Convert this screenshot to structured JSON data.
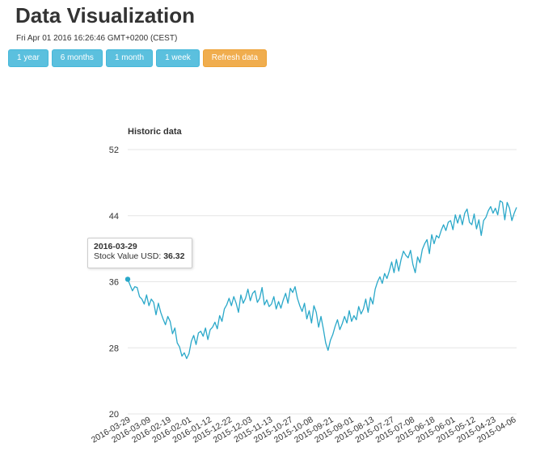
{
  "page": {
    "title": "Data Visualization",
    "timestamp": "Fri Apr 01 2016 16:26:46 GMT+0200 (CEST)"
  },
  "toolbar": {
    "buttons": [
      {
        "label": "1 year"
      },
      {
        "label": "6 months"
      },
      {
        "label": "1 month"
      },
      {
        "label": "1 week"
      },
      {
        "label": "Refresh data"
      }
    ]
  },
  "colors": {
    "line": "#2aa8c9",
    "grid": "#e6e6e6",
    "info_button": "#5bc0de",
    "warning_button": "#f0ad4e"
  },
  "tooltip": {
    "date": "2016-03-29",
    "label": "Stock Value USD:",
    "value": "36.32"
  },
  "chart_data": {
    "type": "line",
    "title": "Historic data",
    "xlabel": "",
    "ylabel": "",
    "ylim": [
      20,
      52
    ],
    "y_ticks": [
      "20",
      "28",
      "36",
      "44",
      "52"
    ],
    "x_ticks": [
      "2016-03-29",
      "2016-03-09",
      "2016-02-19",
      "2016-02-01",
      "2016-01-12",
      "2015-12-22",
      "2015-12-03",
      "2015-11-13",
      "2015-10-27",
      "2015-10-08",
      "2015-09-21",
      "2015-09-01",
      "2015-08-13",
      "2015-07-27",
      "2015-07-08",
      "2015-06-18",
      "2015-06-01",
      "2015-05-12",
      "2015-04-23",
      "2015-04-06"
    ],
    "grid": true,
    "legend": "none",
    "series": [
      {
        "values": [
          36.3,
          35.6,
          34.9,
          35.4,
          35.3,
          34.2,
          33.9,
          33.3,
          34.4,
          33.1,
          33.9,
          33.5,
          32.0,
          33.4,
          32.3,
          31.5,
          30.8,
          31.8,
          31.2,
          29.7,
          30.4,
          28.6,
          28.1,
          27.0,
          27.4,
          26.7,
          27.3,
          28.8,
          29.5,
          28.4,
          29.8,
          30.0,
          29.4,
          30.4,
          29.0,
          30.2,
          30.5,
          31.1,
          30.3,
          31.9,
          31.2,
          32.7,
          33.2,
          34.0,
          33.1,
          34.2,
          33.4,
          32.3,
          34.4,
          33.4,
          34.0,
          35.1,
          33.7,
          34.6,
          34.9,
          33.5,
          34.0,
          35.3,
          33.2,
          33.8,
          33.0,
          33.3,
          34.2,
          32.7,
          33.6,
          32.8,
          33.8,
          34.6,
          33.4,
          35.2,
          34.7,
          35.4,
          34.0,
          33.1,
          32.4,
          33.4,
          31.5,
          32.5,
          31.0,
          33.1,
          32.3,
          30.5,
          31.8,
          30.3,
          28.6,
          27.7,
          28.9,
          29.6,
          30.6,
          31.4,
          30.2,
          30.9,
          31.8,
          31.0,
          32.5,
          31.2,
          31.9,
          31.4,
          33.0,
          32.1,
          32.7,
          33.9,
          32.3,
          34.1,
          33.3,
          35.1,
          36.0,
          36.6,
          35.8,
          37.0,
          36.4,
          37.3,
          38.4,
          37.1,
          38.7,
          37.3,
          38.7,
          39.7,
          39.2,
          38.9,
          39.8,
          38.1,
          37.1,
          39.0,
          38.3,
          39.9,
          40.6,
          41.1,
          39.4,
          41.7,
          40.6,
          41.6,
          41.3,
          42.2,
          42.9,
          42.2,
          43.2,
          43.4,
          42.3,
          44.1,
          43.1,
          44.1,
          42.9,
          44.3,
          44.8,
          43.2,
          42.9,
          44.2,
          42.4,
          43.5,
          41.6,
          43.4,
          43.8,
          44.6,
          45.1,
          44.3,
          44.9,
          44.1,
          45.8,
          45.6,
          43.5,
          45.6,
          44.9,
          43.4,
          44.3,
          45.0
        ]
      }
    ]
  }
}
